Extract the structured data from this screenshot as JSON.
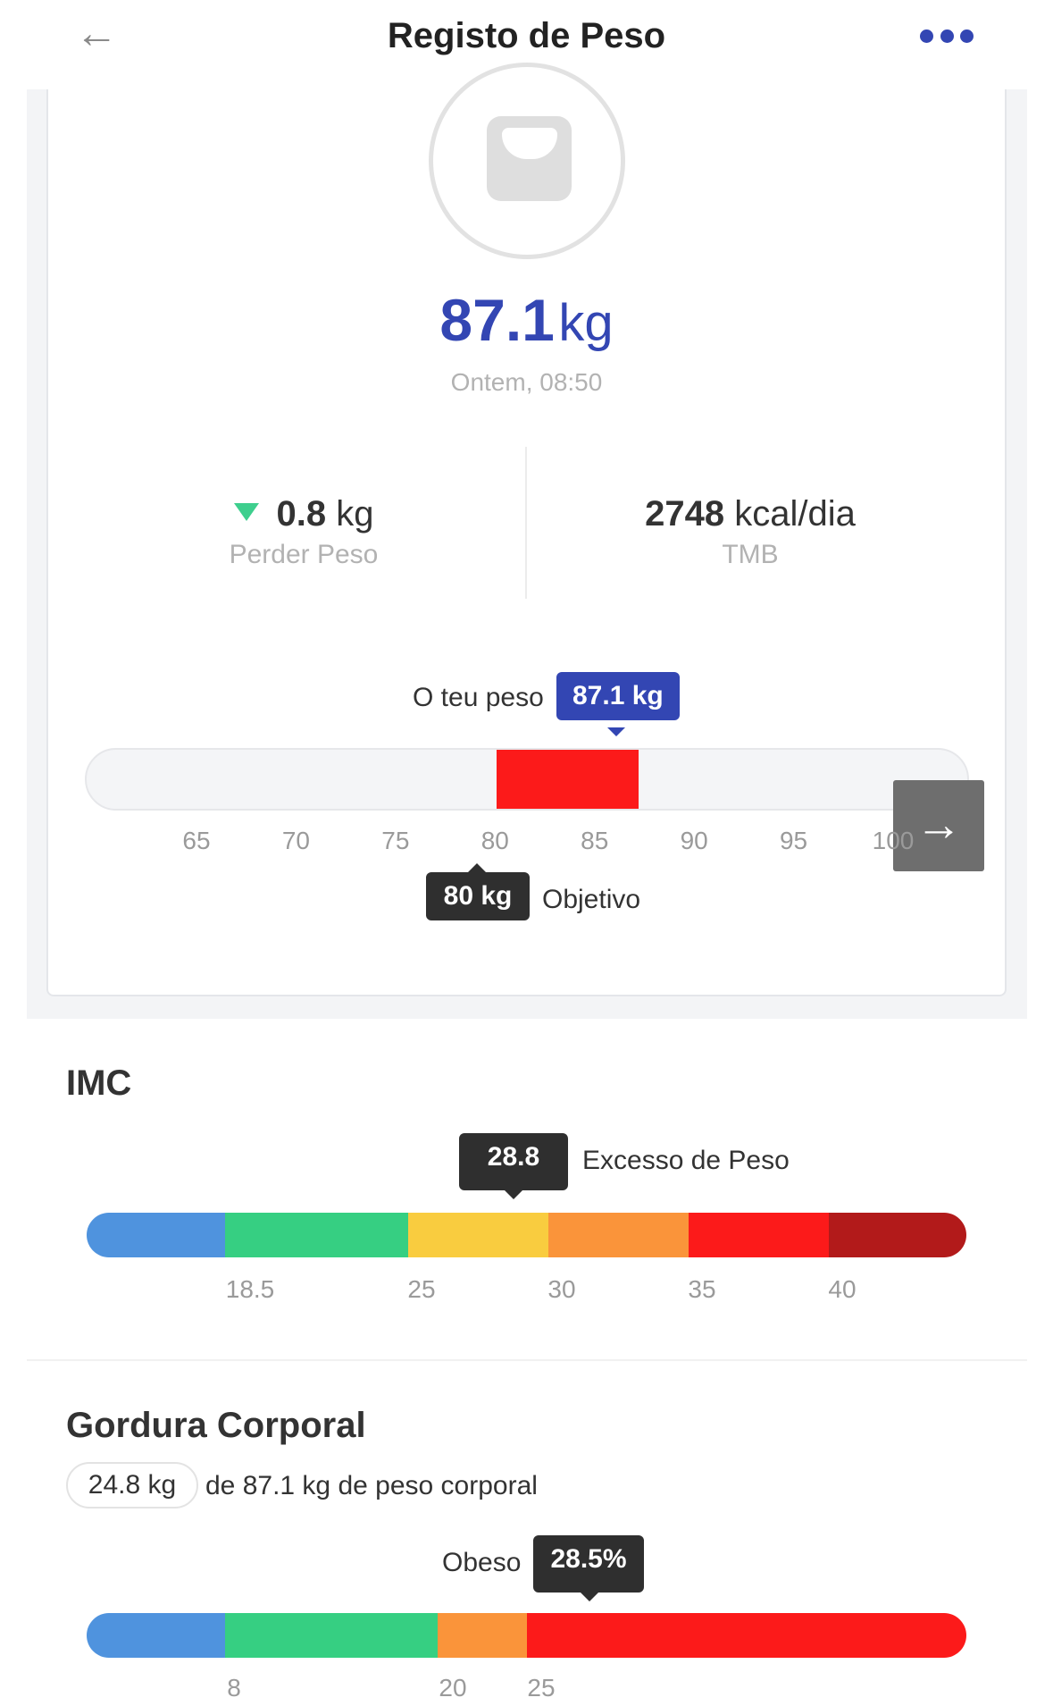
{
  "header": {
    "back_icon": "arrow-left-icon",
    "title": "Registo de Peso",
    "more_icon": "more-dots-icon",
    "accent_color": "#3346b3"
  },
  "current": {
    "weight_value": "87.1",
    "weight_unit": "kg",
    "timestamp": "Ontem, 08:50",
    "scale_icon": "scale-icon"
  },
  "stats": {
    "change_icon": "triangle-down-icon",
    "change_value": "0.8",
    "change_unit": "kg",
    "change_label": "Perder Peso",
    "bmr_value": "2748",
    "bmr_unit": "kcal/dia",
    "bmr_label": "TMB"
  },
  "weight_range": {
    "your_weight_label": "O teu peso",
    "your_weight_value": "87.1 kg",
    "goal_value": "80 kg",
    "goal_label": "Objetivo",
    "ticks": [
      "65",
      "70",
      "75",
      "80",
      "85",
      "90",
      "95",
      "100"
    ],
    "fill_from": 80,
    "fill_to": 87.1,
    "fill_color": "#fc1a1a",
    "next_icon": "arrow-right-icon"
  },
  "bmi": {
    "title": "IMC",
    "value": "28.8",
    "category": "Excesso de Peso",
    "ticks": [
      "18.5",
      "25",
      "30",
      "35",
      "40"
    ],
    "segment_colors": [
      "#4f93de",
      "#36cf82",
      "#f9cc3f",
      "#fa943a",
      "#fc1a1a",
      "#b21a1a"
    ]
  },
  "body_fat": {
    "title": "Gordura Corporal",
    "mass_value": "24.8 kg",
    "mass_text": "de 87.1 kg de peso corporal",
    "category": "Obeso",
    "percent": "28.5%",
    "ticks": [
      "8",
      "20",
      "25"
    ],
    "segment_colors": [
      "#4f93de",
      "#36cf82",
      "#fa943a",
      "#fc1a1a"
    ]
  }
}
